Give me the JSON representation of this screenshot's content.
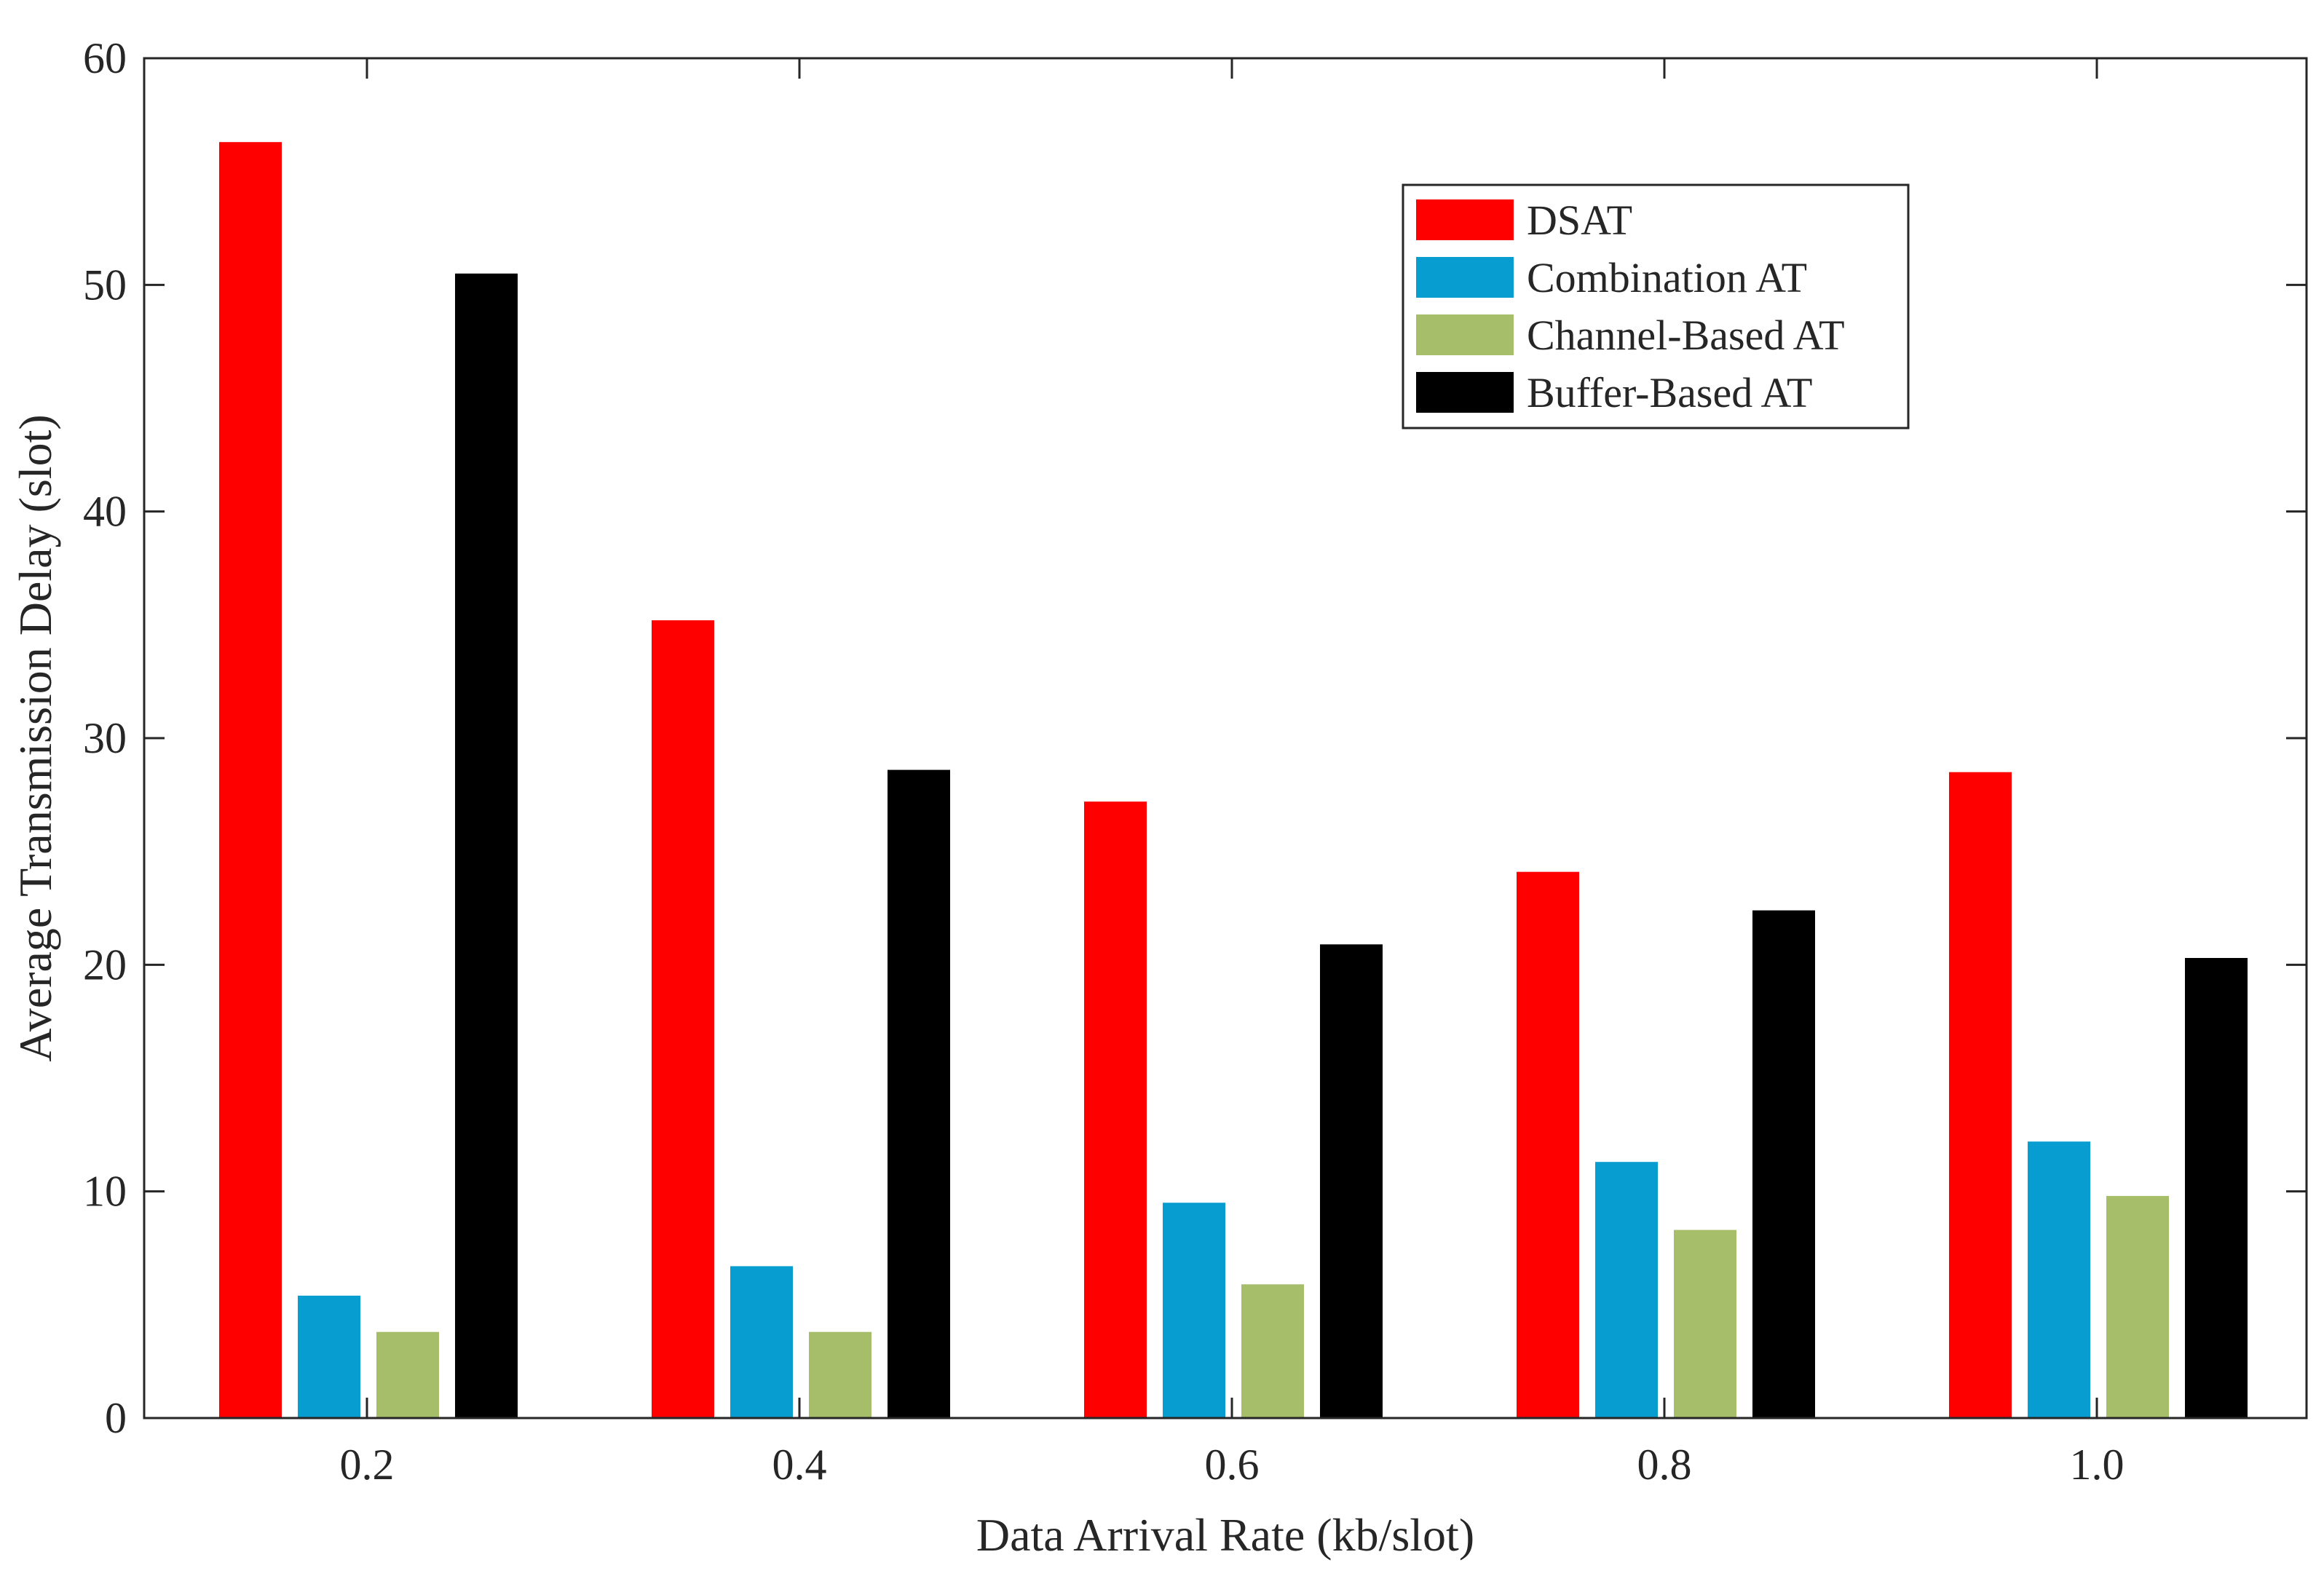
{
  "chart_data": {
    "type": "bar",
    "title": "",
    "xlabel": "Data Arrival Rate (kb/slot)",
    "ylabel": "Average Transmission Delay (slot)",
    "categories": [
      "0.2",
      "0.4",
      "0.6",
      "0.8",
      "1.0"
    ],
    "ylim": [
      0,
      60
    ],
    "yticks": [
      "0",
      "10",
      "20",
      "30",
      "40",
      "50",
      "60"
    ],
    "legend_position": "top-right",
    "grid": false,
    "series": [
      {
        "name": "DSAT",
        "color": "#ff0000",
        "values": [
          56.3,
          35.2,
          27.2,
          24.1,
          28.5
        ]
      },
      {
        "name": "Combination AT",
        "color": "#079dd0",
        "values": [
          5.4,
          6.7,
          9.5,
          11.3,
          12.2
        ]
      },
      {
        "name": "Channel-Based AT",
        "color": "#a6be69",
        "values": [
          3.8,
          3.8,
          5.9,
          8.3,
          9.8
        ]
      },
      {
        "name": "Buffer-Based AT",
        "color": "#000000",
        "values": [
          50.5,
          28.6,
          20.9,
          22.4,
          20.3
        ]
      }
    ]
  }
}
